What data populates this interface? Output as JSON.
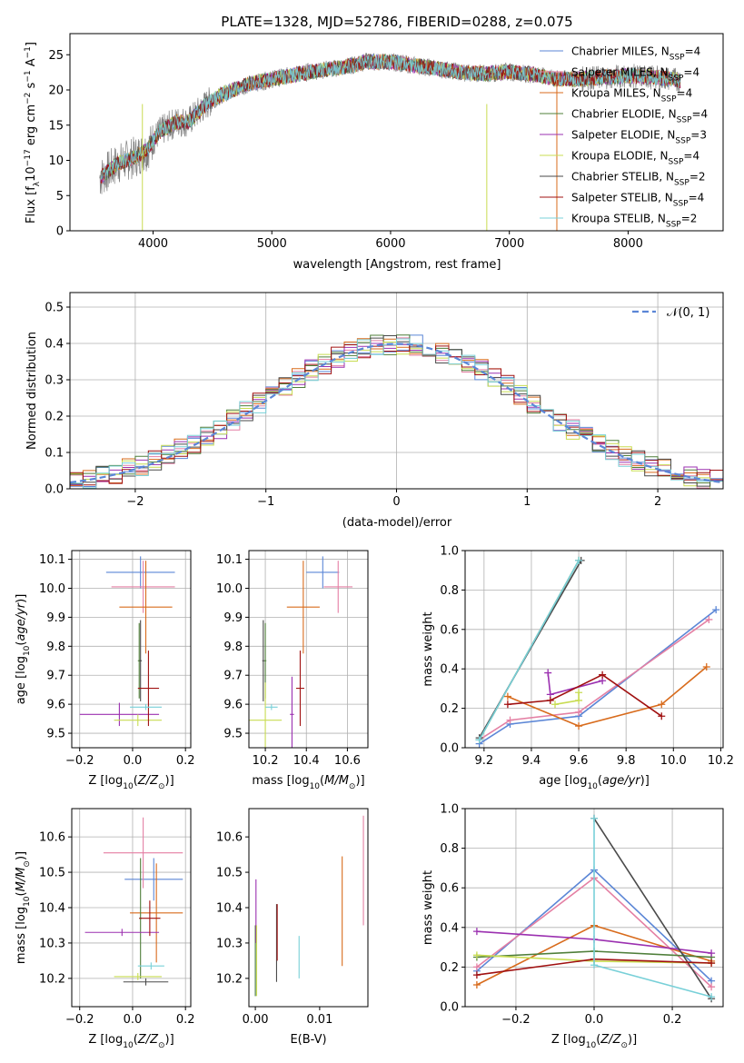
{
  "figure": {
    "title": "PLATE=1328, MJD=52786, FIBERID=0288, z=0.075"
  },
  "series_colors": {
    "Chabrier MILES": "#5b86d6",
    "Salpeter MILES": "#e47fa3",
    "Kroupa MILES": "#d86b1c",
    "Chabrier ELODIE": "#4f7f3a",
    "Salpeter ELODIE": "#9b30b0",
    "Kroupa ELODIE": "#c8dc52",
    "Chabrier STELIB": "#4a4a4a",
    "Salpeter STELIB": "#a01010",
    "Kroupa STELIB": "#78d0d8"
  },
  "chart_data": [
    {
      "id": "spectrum",
      "type": "line",
      "xlabel": "wavelength [Angstrom, rest frame]",
      "ylabel_parts": [
        "Flux [f",
        "λ",
        "10",
        "−17",
        " erg cm",
        "−2",
        " s",
        "−1",
        " A",
        "−1",
        "]"
      ],
      "xlim": [
        3300,
        8800
      ],
      "ylim": [
        0,
        28
      ],
      "xticks": [
        4000,
        5000,
        6000,
        7000,
        8000
      ],
      "yticks": [
        0,
        5,
        10,
        15,
        20,
        25
      ],
      "grid": false,
      "legend_position": "right",
      "legend": [
        {
          "name": "Chabrier MILES",
          "nssp": "4"
        },
        {
          "name": "Salpeter MILES",
          "nssp": "4"
        },
        {
          "name": "Kroupa MILES",
          "nssp": "4"
        },
        {
          "name": "Chabrier ELODIE",
          "nssp": "4"
        },
        {
          "name": "Salpeter ELODIE",
          "nssp": "3"
        },
        {
          "name": "Kroupa ELODIE",
          "nssp": "4"
        },
        {
          "name": "Chabrier STELIB",
          "nssp": "2"
        },
        {
          "name": "Salpeter STELIB",
          "nssp": "4"
        },
        {
          "name": "Kroupa STELIB",
          "nssp": "2"
        }
      ],
      "continuum_points": {
        "x": [
          3550,
          3700,
          3850,
          3950,
          4050,
          4200,
          4300,
          4450,
          4600,
          4800,
          5000,
          5200,
          5400,
          5600,
          5800,
          6000,
          6200,
          6400,
          6600,
          6800,
          7000,
          7200,
          7400,
          7600,
          7800,
          8000,
          8200,
          8400,
          8450
        ],
        "y": [
          7.5,
          9.5,
          10.5,
          11.5,
          14.0,
          15.5,
          15.5,
          18.0,
          19.5,
          20.8,
          21.5,
          22.2,
          22.8,
          23.2,
          24.0,
          24.0,
          23.5,
          23.0,
          22.5,
          22.3,
          22.6,
          22.2,
          21.5,
          21.6,
          21.8,
          22.0,
          21.8,
          21.5,
          21.3
        ]
      }
    },
    {
      "id": "residuals",
      "type": "histogram",
      "xlabel": "(data-model)/error",
      "ylabel": "Normed distribution",
      "xlim": [
        -2.5,
        2.5
      ],
      "ylim": [
        0,
        0.54
      ],
      "xticks": [
        -2,
        -1,
        0,
        1,
        2
      ],
      "yticks": [
        0.0,
        0.1,
        0.2,
        0.3,
        0.4,
        0.5
      ],
      "grid": true,
      "legend_position": "top-right",
      "reference_curve": {
        "name": "𝒩(0, 1)",
        "color": "#5b86d6",
        "style": "dashed"
      },
      "bin_edges_start": -2.5,
      "bin_width": 0.1,
      "n_bins": 50
    },
    {
      "id": "age-vs-Z",
      "type": "errorbar",
      "xlabel": "Z [log10(Z/Z⊙)]",
      "ylabel": "age  [log10(age/yr)]",
      "xlim": [
        -0.23,
        0.22
      ],
      "ylim": [
        9.45,
        10.13
      ],
      "xticks": [
        -0.2,
        0.0,
        0.2
      ],
      "yticks": [
        9.5,
        9.6,
        9.7,
        9.8,
        9.9,
        10.0,
        10.1
      ],
      "grid": true,
      "points": [
        {
          "series": "Chabrier MILES",
          "x": 0.03,
          "xerr": 0.13,
          "y": 10.055,
          "yerr": 0.055
        },
        {
          "series": "Salpeter MILES",
          "x": 0.04,
          "xerr": 0.12,
          "y": 10.005,
          "yerr": 0.09
        },
        {
          "series": "Kroupa MILES",
          "x": 0.05,
          "xerr": 0.1,
          "y": 9.935,
          "yerr": 0.16
        },
        {
          "series": "Chabrier ELODIE",
          "x": 0.025,
          "xerr": 0.005,
          "y": 9.75,
          "yerr": 0.13
        },
        {
          "series": "Salpeter ELODIE",
          "x": -0.05,
          "xerr": 0.15,
          "y": 9.565,
          "yerr": 0.04
        },
        {
          "series": "Kroupa ELODIE",
          "x": 0.02,
          "xerr": 0.09,
          "y": 9.545,
          "yerr": 0.02
        },
        {
          "series": "Chabrier STELIB",
          "x": 0.03,
          "xerr": 0.005,
          "y": 9.75,
          "yerr": 0.14
        },
        {
          "series": "Salpeter STELIB",
          "x": 0.06,
          "xerr": 0.04,
          "y": 9.655,
          "yerr": 0.13
        },
        {
          "series": "Kroupa STELIB",
          "x": 0.05,
          "xerr": 0.06,
          "y": 9.59,
          "yerr": 0.01
        }
      ]
    },
    {
      "id": "age-vs-mass",
      "type": "errorbar",
      "xlabel": "mass [log10(M/M⊙)]",
      "xlim": [
        10.12,
        10.7
      ],
      "ylim": [
        9.45,
        10.13
      ],
      "xticks": [
        10.2,
        10.4,
        10.6
      ],
      "yticks": [
        9.5,
        9.6,
        9.7,
        9.8,
        9.9,
        10.0,
        10.1
      ],
      "grid": true,
      "points": [
        {
          "series": "Chabrier MILES",
          "x": 10.48,
          "xerr": 0.08,
          "y": 10.055,
          "yerr": 0.055
        },
        {
          "series": "Salpeter MILES",
          "x": 10.555,
          "xerr": 0.07,
          "y": 10.005,
          "yerr": 0.09
        },
        {
          "series": "Kroupa MILES",
          "x": 10.385,
          "xerr": 0.08,
          "y": 9.935,
          "yerr": 0.16
        },
        {
          "series": "Chabrier ELODIE",
          "x": 10.2,
          "xerr": 0.005,
          "y": 9.75,
          "yerr": 0.13
        },
        {
          "series": "Salpeter ELODIE",
          "x": 10.33,
          "xerr": 0.01,
          "y": 9.565,
          "yerr": 0.13
        },
        {
          "series": "Kroupa ELODIE",
          "x": 10.2,
          "xerr": 0.08,
          "y": 9.545,
          "yerr": 0.13
        },
        {
          "series": "Chabrier STELIB",
          "x": 10.19,
          "xerr": 0.005,
          "y": 9.75,
          "yerr": 0.14
        },
        {
          "series": "Salpeter STELIB",
          "x": 10.37,
          "xerr": 0.02,
          "y": 9.655,
          "yerr": 0.13
        },
        {
          "series": "Kroupa STELIB",
          "x": 10.23,
          "xerr": 0.03,
          "y": 9.59,
          "yerr": 0.01
        }
      ]
    },
    {
      "id": "massweight-vs-age",
      "type": "line",
      "xlabel": "age  [log10(age/yr)]",
      "ylabel": "mass weight",
      "xlim": [
        9.12,
        10.21
      ],
      "ylim": [
        0,
        1.0
      ],
      "xticks": [
        9.2,
        9.4,
        9.6,
        9.8,
        10.0,
        10.2
      ],
      "yticks": [
        0.0,
        0.2,
        0.4,
        0.6,
        0.8,
        1.0
      ],
      "grid": true,
      "series": [
        {
          "name": "Chabrier MILES",
          "x": [
            9.18,
            9.31,
            9.6,
            10.18
          ],
          "y": [
            0.02,
            0.12,
            0.16,
            0.7
          ]
        },
        {
          "name": "Salpeter MILES",
          "x": [
            9.18,
            9.31,
            9.6,
            10.15
          ],
          "y": [
            0.04,
            0.14,
            0.18,
            0.65
          ]
        },
        {
          "name": "Kroupa MILES",
          "x": [
            9.3,
            9.6,
            9.95,
            10.14
          ],
          "y": [
            0.26,
            0.11,
            0.22,
            0.41
          ]
        },
        {
          "name": "Chabrier ELODIE",
          "x": [
            9.18,
            9.6
          ],
          "y": [
            0.04,
            0.95
          ]
        },
        {
          "name": "Salpeter ELODIE",
          "x": [
            9.47,
            9.48,
            9.7
          ],
          "y": [
            0.38,
            0.27,
            0.34
          ]
        },
        {
          "name": "Kroupa ELODIE",
          "x": [
            9.5,
            9.6,
            9.6
          ],
          "y": [
            0.22,
            0.24,
            0.28
          ]
        },
        {
          "name": "Chabrier STELIB",
          "x": [
            9.18,
            9.61
          ],
          "y": [
            0.05,
            0.95
          ]
        },
        {
          "name": "Salpeter STELIB",
          "x": [
            9.3,
            9.48,
            9.7,
            9.95
          ],
          "y": [
            0.22,
            0.24,
            0.37,
            0.16
          ]
        },
        {
          "name": "Kroupa STELIB",
          "x": [
            9.18,
            9.6
          ],
          "y": [
            0.04,
            0.95
          ]
        }
      ]
    },
    {
      "id": "mass-vs-Z",
      "type": "errorbar",
      "xlabel": "Z [log10(Z/Z⊙)]",
      "ylabel": "mass [log10(M/M⊙)]",
      "xlim": [
        -0.23,
        0.22
      ],
      "ylim": [
        10.12,
        10.68
      ],
      "xticks": [
        -0.2,
        0.0,
        0.2
      ],
      "yticks": [
        10.2,
        10.3,
        10.4,
        10.5,
        10.6
      ],
      "grid": true,
      "points": [
        {
          "series": "Chabrier MILES",
          "x": 0.08,
          "xerr": 0.11,
          "y": 10.48,
          "yerr": 0.06
        },
        {
          "series": "Salpeter MILES",
          "x": 0.04,
          "xerr": 0.15,
          "y": 10.555,
          "yerr": 0.1
        },
        {
          "series": "Kroupa MILES",
          "x": 0.09,
          "xerr": 0.1,
          "y": 10.385,
          "yerr": 0.14
        },
        {
          "series": "Chabrier ELODIE",
          "x": 0.03,
          "xerr": 0.005,
          "y": 10.37,
          "yerr": 0.17
        },
        {
          "series": "Salpeter ELODIE",
          "x": -0.04,
          "xerr": 0.14,
          "y": 10.33,
          "yerr": 0.01
        },
        {
          "series": "Kroupa ELODIE",
          "x": 0.02,
          "xerr": 0.09,
          "y": 10.205,
          "yerr": 0.01
        },
        {
          "series": "Chabrier STELIB",
          "x": 0.05,
          "xerr": 0.085,
          "y": 10.19,
          "yerr": 0.01
        },
        {
          "series": "Salpeter STELIB",
          "x": 0.065,
          "xerr": 0.04,
          "y": 10.37,
          "yerr": 0.05
        },
        {
          "series": "Kroupa STELIB",
          "x": 0.07,
          "xerr": 0.05,
          "y": 10.235,
          "yerr": 0.01
        }
      ]
    },
    {
      "id": "mass-vs-EBV",
      "type": "errorbar",
      "xlabel": "E(B-V)",
      "xlim": [
        -0.001,
        0.0175
      ],
      "ylim": [
        10.12,
        10.68
      ],
      "xticks": [
        0.0,
        0.01
      ],
      "yticks": [
        10.2,
        10.3,
        10.4,
        10.5,
        10.6
      ],
      "grid": false,
      "points": [
        {
          "series": "Chabrier MILES",
          "x": 0.0,
          "y": 10.25,
          "yerr": 0.1
        },
        {
          "series": "Salpeter MILES",
          "x": 0.0168,
          "y": 10.505,
          "yerr": 0.155
        },
        {
          "series": "Kroupa MILES",
          "x": 0.0135,
          "y": 10.39,
          "yerr": 0.155
        },
        {
          "series": "Chabrier ELODIE",
          "x": 0.0,
          "y": 10.25,
          "yerr": 0.1
        },
        {
          "series": "Salpeter ELODIE",
          "x": 0.0001,
          "y": 10.39,
          "yerr": 0.09
        },
        {
          "series": "Kroupa ELODIE",
          "x": 0.0002,
          "y": 10.25,
          "yerr": 0.1
        },
        {
          "series": "Chabrier STELIB",
          "x": 0.0033,
          "y": 10.3,
          "yerr": 0.11
        },
        {
          "series": "Salpeter STELIB",
          "x": 0.0034,
          "y": 10.33,
          "yerr": 0.08
        },
        {
          "series": "Kroupa STELIB",
          "x": 0.0068,
          "y": 10.26,
          "yerr": 0.06
        }
      ]
    },
    {
      "id": "massweight-vs-Z",
      "type": "line",
      "xlabel": "Z [log10(Z/Z⊙)]",
      "ylabel": "mass weight",
      "xlim": [
        -0.33,
        0.33
      ],
      "ylim": [
        0,
        1.0
      ],
      "xticks": [
        -0.2,
        0.0,
        0.2
      ],
      "yticks": [
        0.0,
        0.2,
        0.4,
        0.6,
        0.8,
        1.0
      ],
      "grid": true,
      "series": [
        {
          "name": "Chabrier MILES",
          "x": [
            -0.3,
            0.0,
            0.3
          ],
          "y": [
            0.18,
            0.69,
            0.13
          ]
        },
        {
          "name": "Salpeter MILES",
          "x": [
            -0.3,
            0.0,
            0.3
          ],
          "y": [
            0.2,
            0.65,
            0.1
          ]
        },
        {
          "name": "Kroupa MILES",
          "x": [
            -0.3,
            0.0,
            0.3
          ],
          "y": [
            0.11,
            0.41,
            0.23
          ]
        },
        {
          "name": "Chabrier ELODIE",
          "x": [
            -0.3,
            0.0,
            0.3
          ],
          "y": [
            0.25,
            0.28,
            0.25
          ]
        },
        {
          "name": "Salpeter ELODIE",
          "x": [
            -0.3,
            0.0,
            0.3
          ],
          "y": [
            0.38,
            0.34,
            0.27
          ]
        },
        {
          "name": "Kroupa ELODIE",
          "x": [
            -0.3,
            0.0,
            0.3
          ],
          "y": [
            0.26,
            0.23,
            0.22
          ]
        },
        {
          "name": "Chabrier STELIB",
          "x": [
            0.0,
            0.3
          ],
          "y": [
            0.95,
            0.04
          ]
        },
        {
          "name": "Salpeter STELIB",
          "x": [
            -0.3,
            0.0,
            0.3
          ],
          "y": [
            0.16,
            0.24,
            0.22
          ]
        },
        {
          "name": "Kroupa STELIB",
          "x": [
            0.0,
            0.0,
            0.3
          ],
          "y": [
            0.95,
            0.21,
            0.05
          ]
        }
      ]
    }
  ]
}
